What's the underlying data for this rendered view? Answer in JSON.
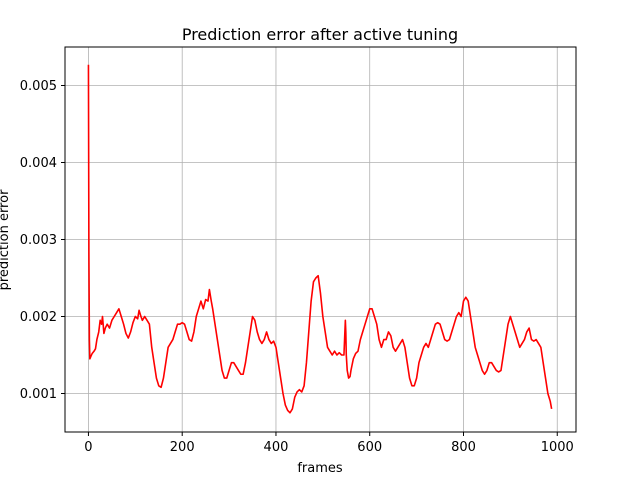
{
  "chart_data": {
    "type": "line",
    "title": "Prediction error after active tuning",
    "xlabel": "frames",
    "ylabel": "prediction error",
    "xlim": [
      -50,
      1040
    ],
    "ylim": [
      0.0005,
      0.0055
    ],
    "xticks": [
      0,
      200,
      400,
      600,
      800,
      1000
    ],
    "yticks": [
      0.001,
      0.002,
      0.003,
      0.004,
      0.005
    ],
    "xtick_labels": [
      "0",
      "200",
      "400",
      "600",
      "800",
      "1000"
    ],
    "ytick_labels": [
      "0.001",
      "0.002",
      "0.003",
      "0.004",
      "0.005"
    ],
    "grid": true,
    "series": [
      {
        "color": "#ff0000",
        "x": [
          0,
          1,
          2,
          3,
          5,
          8,
          12,
          15,
          18,
          22,
          25,
          28,
          30,
          33,
          36,
          40,
          45,
          50,
          55,
          60,
          65,
          70,
          75,
          80,
          85,
          90,
          95,
          100,
          105,
          108,
          112,
          115,
          120,
          125,
          130,
          135,
          140,
          145,
          150,
          155,
          160,
          165,
          170,
          175,
          180,
          185,
          190,
          195,
          200,
          205,
          210,
          215,
          220,
          225,
          230,
          235,
          240,
          245,
          250,
          255,
          258,
          262,
          265,
          270,
          275,
          280,
          285,
          290,
          295,
          300,
          305,
          310,
          315,
          320,
          325,
          330,
          335,
          340,
          345,
          350,
          355,
          360,
          365,
          370,
          375,
          380,
          385,
          390,
          395,
          400,
          405,
          410,
          415,
          420,
          425,
          430,
          435,
          440,
          445,
          450,
          455,
          460,
          465,
          470,
          475,
          480,
          485,
          490,
          495,
          500,
          505,
          510,
          515,
          520,
          525,
          530,
          535,
          540,
          545,
          548,
          549,
          550,
          552,
          555,
          558,
          560,
          565,
          570,
          575,
          580,
          585,
          590,
          595,
          600,
          605,
          610,
          615,
          620,
          625,
          630,
          635,
          640,
          645,
          650,
          655,
          660,
          665,
          670,
          675,
          680,
          685,
          690,
          695,
          700,
          705,
          710,
          715,
          720,
          725,
          730,
          735,
          740,
          745,
          750,
          755,
          760,
          765,
          770,
          775,
          780,
          785,
          790,
          795,
          800,
          805,
          810,
          815,
          820,
          825,
          830,
          835,
          840,
          845,
          850,
          855,
          860,
          865,
          870,
          875,
          880,
          885,
          890,
          895,
          900,
          905,
          910,
          915,
          920,
          925,
          930,
          935,
          940,
          945,
          950,
          955,
          960,
          965,
          970,
          975,
          980,
          985,
          988
        ],
        "y": [
          0.00527,
          0.0028,
          0.0017,
          0.00145,
          0.00148,
          0.00152,
          0.00155,
          0.00158,
          0.0017,
          0.0018,
          0.00195,
          0.0019,
          0.002,
          0.00178,
          0.00185,
          0.0019,
          0.00185,
          0.00195,
          0.002,
          0.00205,
          0.0021,
          0.002,
          0.0019,
          0.00178,
          0.00172,
          0.0018,
          0.00192,
          0.002,
          0.00197,
          0.00208,
          0.002,
          0.00195,
          0.002,
          0.00195,
          0.0019,
          0.0016,
          0.0014,
          0.0012,
          0.0011,
          0.00108,
          0.0012,
          0.0014,
          0.0016,
          0.00165,
          0.0017,
          0.0018,
          0.0019,
          0.0019,
          0.00192,
          0.0019,
          0.0018,
          0.0017,
          0.00168,
          0.0018,
          0.002,
          0.0021,
          0.0022,
          0.0021,
          0.00222,
          0.0022,
          0.00235,
          0.0022,
          0.0021,
          0.0019,
          0.0017,
          0.0015,
          0.0013,
          0.0012,
          0.0012,
          0.0013,
          0.0014,
          0.0014,
          0.00135,
          0.0013,
          0.00125,
          0.00125,
          0.0014,
          0.0016,
          0.0018,
          0.002,
          0.00195,
          0.0018,
          0.0017,
          0.00165,
          0.0017,
          0.0018,
          0.0017,
          0.00165,
          0.00168,
          0.0016,
          0.0014,
          0.0012,
          0.001,
          0.00085,
          0.00078,
          0.00075,
          0.0008,
          0.00095,
          0.00102,
          0.00105,
          0.00102,
          0.0011,
          0.0014,
          0.0018,
          0.0022,
          0.00245,
          0.0025,
          0.00253,
          0.0023,
          0.002,
          0.0018,
          0.0016,
          0.00155,
          0.0015,
          0.00155,
          0.0015,
          0.00153,
          0.0015,
          0.0015,
          0.00195,
          0.0018,
          0.0015,
          0.0013,
          0.0012,
          0.00122,
          0.0013,
          0.00145,
          0.00152,
          0.00155,
          0.0017,
          0.0018,
          0.0019,
          0.002,
          0.0021,
          0.0021,
          0.002,
          0.0019,
          0.0017,
          0.0016,
          0.0017,
          0.0017,
          0.0018,
          0.00175,
          0.0016,
          0.00155,
          0.0016,
          0.00165,
          0.0017,
          0.0016,
          0.0014,
          0.0012,
          0.0011,
          0.0011,
          0.0012,
          0.0014,
          0.0015,
          0.0016,
          0.00165,
          0.0016,
          0.0017,
          0.0018,
          0.0019,
          0.00192,
          0.0019,
          0.0018,
          0.0017,
          0.00168,
          0.0017,
          0.0018,
          0.0019,
          0.002,
          0.00205,
          0.002,
          0.0022,
          0.00225,
          0.0022,
          0.002,
          0.0018,
          0.0016,
          0.0015,
          0.0014,
          0.0013,
          0.00125,
          0.0013,
          0.0014,
          0.0014,
          0.00135,
          0.0013,
          0.00128,
          0.0013,
          0.0015,
          0.0017,
          0.0019,
          0.002,
          0.0019,
          0.0018,
          0.0017,
          0.0016,
          0.00165,
          0.0017,
          0.0018,
          0.00185,
          0.0017,
          0.00168,
          0.0017,
          0.00165,
          0.0016,
          0.0014,
          0.0012,
          0.001,
          0.0009,
          0.0008
        ]
      }
    ]
  }
}
